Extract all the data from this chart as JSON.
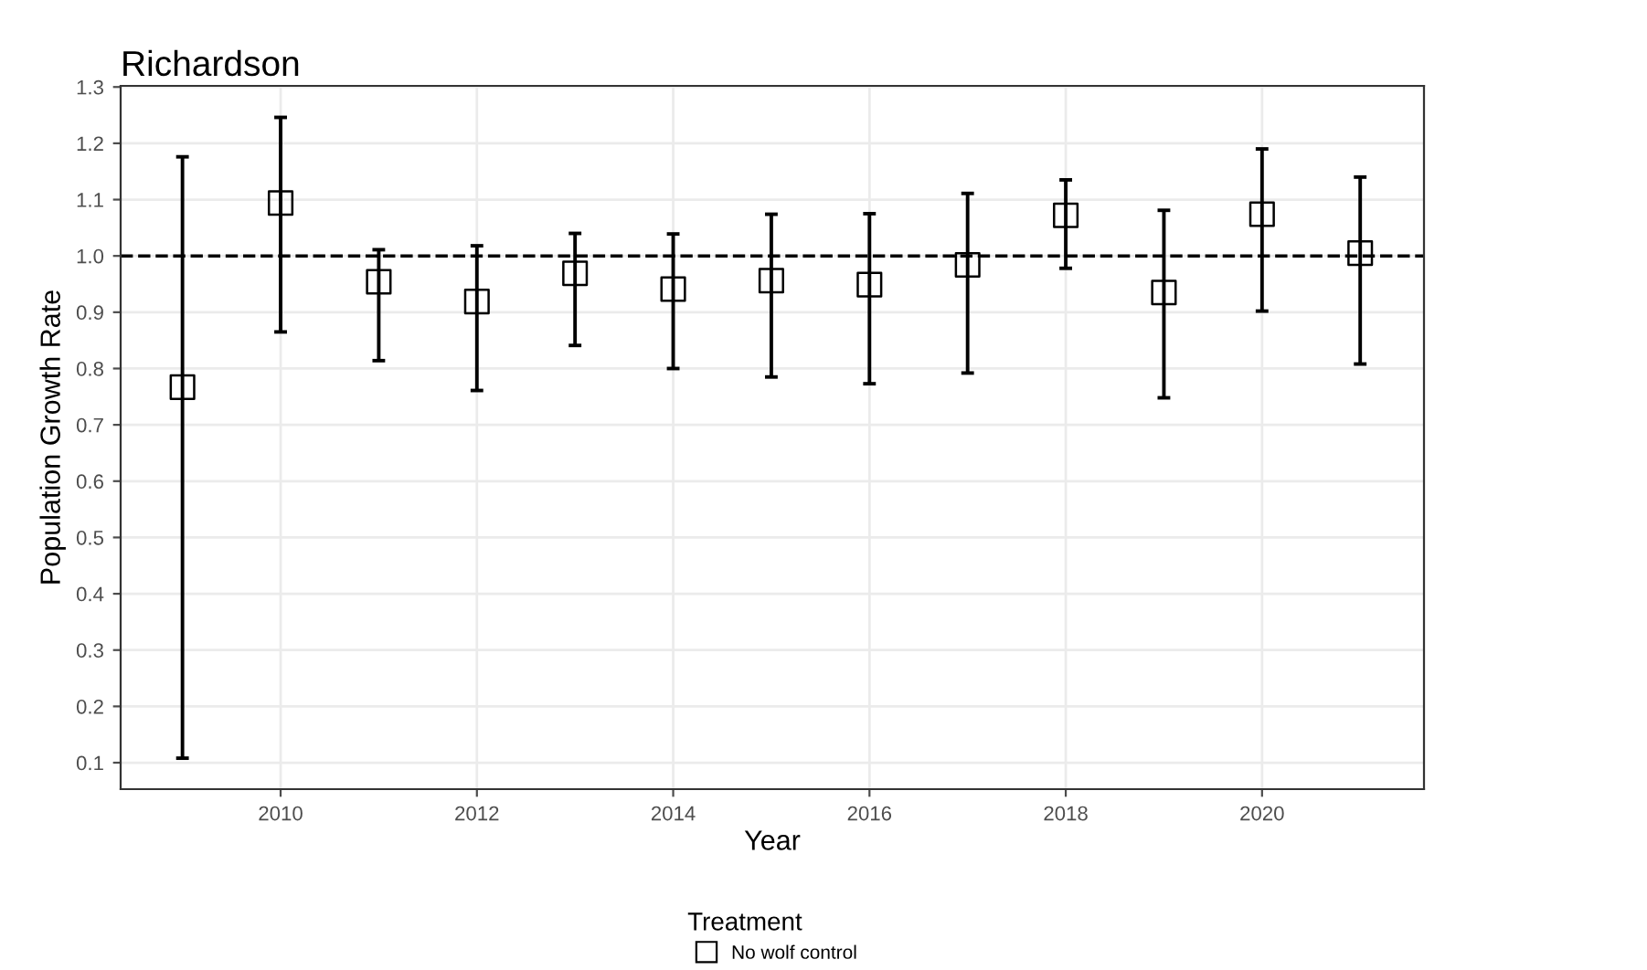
{
  "chart_data": {
    "type": "scatter",
    "title": "Richardson",
    "xlabel": "Year",
    "ylabel": "Population Growth Rate",
    "legend_title": "Treatment",
    "x": [
      2009,
      2010,
      2011,
      2012,
      2013,
      2014,
      2015,
      2016,
      2017,
      2018,
      2019,
      2020,
      2021
    ],
    "series": [
      {
        "name": "No wolf control",
        "color": "#000000",
        "values": [
          0.767,
          1.094,
          0.954,
          0.919,
          0.969,
          0.941,
          0.956,
          0.949,
          0.984,
          1.072,
          0.935,
          1.074,
          1.005
        ],
        "errors": [
          [
            0.108,
            1.176
          ],
          [
            0.865,
            1.246
          ],
          [
            0.814,
            1.011
          ],
          [
            0.761,
            1.018
          ],
          [
            0.841,
            1.04
          ],
          [
            0.8,
            1.039
          ],
          [
            0.785,
            1.074
          ],
          [
            0.773,
            1.075
          ],
          [
            0.792,
            1.111
          ],
          [
            0.978,
            1.135
          ],
          [
            0.748,
            1.081
          ],
          [
            0.902,
            1.19
          ],
          [
            0.808,
            1.14
          ]
        ]
      }
    ],
    "marker": "square",
    "xlim": [
      2008.37,
      2021.65
    ],
    "xticks": [
      2010,
      2012,
      2014,
      2016,
      2018,
      2020
    ],
    "ylim": [
      0.053,
      1.302
    ],
    "yticks": [
      {
        "value": 0.1,
        "label": "0.1"
      },
      {
        "value": 0.2,
        "label": "0.2"
      },
      {
        "value": 0.3,
        "label": "0.3"
      },
      {
        "value": 0.4,
        "label": "0.4"
      },
      {
        "value": 0.5,
        "label": "0.5"
      },
      {
        "value": 0.6,
        "label": "0.6"
      },
      {
        "value": 0.7,
        "label": "0.7"
      },
      {
        "value": 0.8,
        "label": "0.8"
      },
      {
        "value": 0.9,
        "label": "0.9"
      },
      {
        "value": 1.0,
        "label": "1.0"
      },
      {
        "value": 1.1,
        "label": "1.1"
      },
      {
        "value": 1.2,
        "label": "1.2"
      },
      {
        "value": 1.3,
        "label": "1.3"
      }
    ],
    "ref_lines": [
      {
        "axis": "y",
        "value": 1.0,
        "line_style": "dashed",
        "color": "#000000"
      }
    ],
    "grid": true,
    "legend": "bottom"
  }
}
